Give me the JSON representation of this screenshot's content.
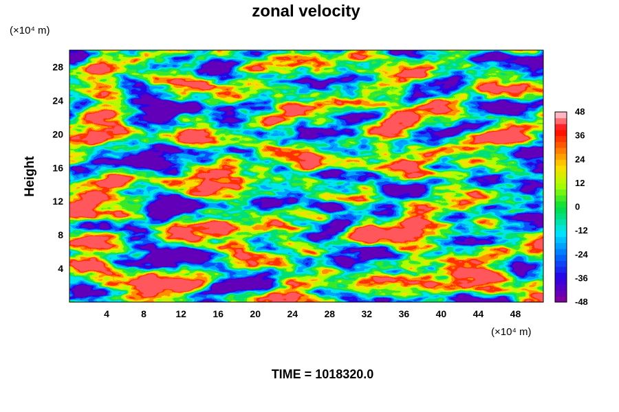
{
  "chart_data": {
    "type": "heatmap",
    "title": "zonal velocity",
    "ylabel": "Height",
    "x_unit": "(×10⁴ m)",
    "y_unit": "(×10⁴ m)",
    "xlim": [
      0,
      51
    ],
    "ylim": [
      0,
      30
    ],
    "x_ticks": [
      4,
      8,
      12,
      16,
      20,
      24,
      28,
      32,
      36,
      40,
      44,
      48
    ],
    "y_ticks": [
      4,
      8,
      12,
      16,
      20,
      24,
      28
    ],
    "colorbar": {
      "min": -48,
      "max": 48,
      "ticks": [
        48,
        36,
        24,
        12,
        0,
        -12,
        -24,
        -36,
        -48
      ],
      "bands": 32
    },
    "annotation": "TIME = 1018320.0"
  },
  "colors": {
    "low": "#7f00a0",
    "high": "#ffb6c1"
  }
}
